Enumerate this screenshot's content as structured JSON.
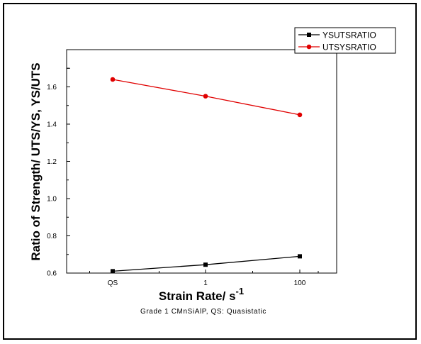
{
  "chart_data": {
    "type": "line",
    "categories": [
      "QS",
      "1",
      "100"
    ],
    "series": [
      {
        "name": "YSUTSRATIO",
        "values": [
          0.61,
          0.645,
          0.69
        ],
        "color": "#000000",
        "marker": "square"
      },
      {
        "name": "UTSYSRATIO",
        "values": [
          1.64,
          1.55,
          1.45
        ],
        "color": "#e00000",
        "marker": "circle"
      }
    ],
    "xlabel": "Strain Rate/ s",
    "xlabel_superscript": "-1",
    "ylabel": "Ratio of Strength/ UTS/YS, YS/UTS",
    "ylim": [
      0.6,
      1.8
    ],
    "yticks": [
      "0.6",
      "0.8",
      "1.0",
      "1.2",
      "1.4",
      "1.6"
    ],
    "annotation": "Grade 1 CMnSiAlP,  QS: Quasistatic",
    "legend_position": "top-right",
    "grid": false
  }
}
